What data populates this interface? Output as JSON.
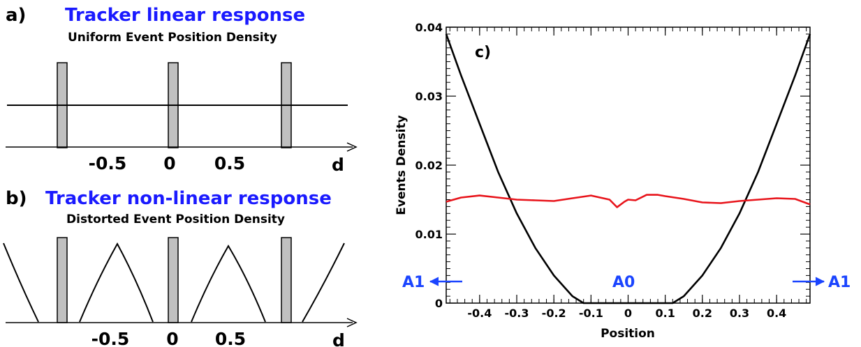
{
  "panel_a": {
    "letter": "a)",
    "title": "Tracker linear response",
    "subtitle": "Uniform Event Position Density",
    "axis_label": "d",
    "ticks": [
      "-0.5",
      "0",
      "0.5"
    ]
  },
  "panel_b": {
    "letter": "b)",
    "title": "Tracker non-linear response",
    "subtitle": "Distorted Event Position Density",
    "axis_label": "d",
    "ticks": [
      "-0.5",
      "0",
      "0.5"
    ]
  },
  "colors": {
    "bar_fill": "#c0c0c0",
    "flat_series": "#e8141b",
    "curved_series": "#000000",
    "annotation": "#1a44ff",
    "title_blue": "#1a1aff"
  },
  "chart_data": {
    "type": "line",
    "letter": "c)",
    "xlabel": "Position",
    "ylabel": "Events Density",
    "xlim": [
      -0.49,
      0.49
    ],
    "ylim": [
      0,
      0.04
    ],
    "x_ticks": [
      "-0.4",
      "-0.3",
      "-0.2",
      "-0.1",
      "0",
      "0.1",
      "0.2",
      "0.3",
      "0.4"
    ],
    "y_ticks": [
      "0",
      "0.01",
      "0.02",
      "0.03",
      "0.04"
    ],
    "annotations": {
      "left": "A1",
      "center": "A0",
      "right": "A1"
    },
    "series": [
      {
        "color": "#000000",
        "x": [
          -0.49,
          -0.45,
          -0.4,
          -0.35,
          -0.3,
          -0.25,
          -0.2,
          -0.15,
          -0.12,
          -0.1,
          0,
          0.1,
          0.12,
          0.15,
          0.2,
          0.25,
          0.3,
          0.35,
          0.4,
          0.45,
          0.49
        ],
        "y": [
          0.039,
          0.033,
          0.026,
          0.019,
          0.013,
          0.008,
          0.004,
          0.001,
          0.0,
          0.0,
          0.0,
          0.0,
          0.0,
          0.001,
          0.004,
          0.008,
          0.013,
          0.019,
          0.026,
          0.033,
          0.039
        ]
      },
      {
        "color": "#e8141b",
        "x": [
          -0.49,
          -0.45,
          -0.4,
          -0.35,
          -0.3,
          -0.25,
          -0.2,
          -0.15,
          -0.1,
          -0.05,
          -0.03,
          -0.01,
          0.0,
          0.02,
          0.05,
          0.08,
          0.1,
          0.15,
          0.2,
          0.25,
          0.3,
          0.35,
          0.4,
          0.45,
          0.49
        ],
        "y": [
          0.0147,
          0.0153,
          0.0156,
          0.0153,
          0.015,
          0.0149,
          0.0148,
          0.0152,
          0.0156,
          0.015,
          0.0139,
          0.0147,
          0.015,
          0.0149,
          0.0157,
          0.0157,
          0.0155,
          0.0151,
          0.0146,
          0.0145,
          0.0148,
          0.015,
          0.0152,
          0.0151,
          0.0143
        ]
      }
    ]
  }
}
